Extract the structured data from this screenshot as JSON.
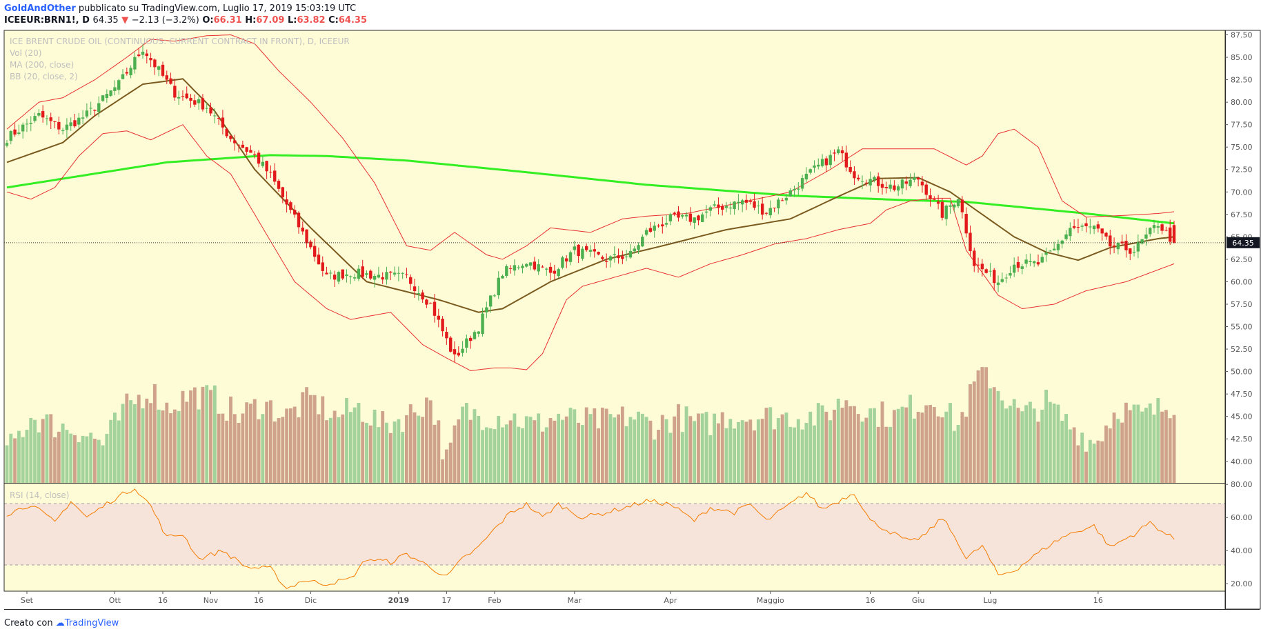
{
  "header": {
    "author": "GoldAndOther",
    "published": "pubblicato su TradingView.com, Luglio 17, 2019 15:03:19 UTC",
    "symbol": "ICEEUR:BRN1!, D",
    "last": "64.35",
    "change_arrow": "▼",
    "change": "−2.13 (−3.2%)",
    "o_label": "O:",
    "o": "66.31",
    "h_label": "H:",
    "h": "67.09",
    "l_label": "L:",
    "l": "63.82",
    "c_label": "C:",
    "c": "64.35"
  },
  "legend": {
    "title": "ICE BRENT CRUDE OIL (CONTINUOUS: CURRENT CONTRACT IN FRONT), D, ICEEUR",
    "vol": "Vol (20)",
    "ma": "MA (200, close)",
    "bb": "BB (20, close, 2)",
    "rsi": "RSI (14, close)"
  },
  "price_badge": "64.35",
  "footer": {
    "made_with": "Creato con",
    "brand": "TradingView"
  },
  "colors": {
    "bg": "#fefcd6",
    "up": "#4caf50",
    "down": "#e31a1c",
    "ma200": "#33ee22",
    "bb_mid": "#7a5a1e",
    "bb_band": "#e83030",
    "rsi": "#f57c00",
    "rsi_band": "#f6e4da",
    "vol_up": "#a3d29a",
    "vol_down": "#cfa28c"
  },
  "chart_data": {
    "type": "candlestick",
    "series_names": [
      "Vol (20)",
      "MA (200, close)",
      "BB (20, close, 2)",
      "RSI (14, close)"
    ],
    "price_axis_ticks": [
      "87.50",
      "85.00",
      "82.50",
      "80.00",
      "77.50",
      "75.00",
      "72.50",
      "70.00",
      "67.50",
      "65.00",
      "62.50",
      "60.00",
      "57.50",
      "55.00",
      "52.50",
      "50.00",
      "47.50",
      "45.00",
      "42.50",
      "40.00"
    ],
    "price_range": [
      37.6,
      88.0
    ],
    "rsi_axis_ticks": [
      "80.00",
      "60.00",
      "40.00",
      "20.00"
    ],
    "rsi_range": [
      15.5,
      80.5
    ],
    "rsi_bands": [
      70,
      30
    ],
    "x_labels": [
      "Set",
      "Ott",
      "16",
      "Nov",
      "16",
      "Dic",
      "2019",
      "17",
      "Feb",
      "Mar",
      "Apr",
      "Maggio",
      "16",
      "Giu",
      "Lug",
      "16"
    ],
    "last_close": 64.35,
    "anchors": {
      "close": [
        [
          0,
          76
        ],
        [
          8,
          78.5
        ],
        [
          14,
          77
        ],
        [
          20,
          78.6
        ],
        [
          28,
          82
        ],
        [
          34,
          86
        ],
        [
          38,
          83.5
        ],
        [
          42,
          81
        ],
        [
          50,
          79.5
        ],
        [
          56,
          76
        ],
        [
          62,
          74
        ],
        [
          66,
          71.8
        ],
        [
          72,
          67
        ],
        [
          80,
          60.5
        ],
        [
          86,
          61
        ],
        [
          92,
          60.7
        ],
        [
          100,
          60.5
        ],
        [
          106,
          57.5
        ],
        [
          112,
          51.5
        ],
        [
          118,
          55
        ],
        [
          124,
          61
        ],
        [
          130,
          62.3
        ],
        [
          136,
          61
        ],
        [
          142,
          63.5
        ],
        [
          150,
          62.5
        ],
        [
          156,
          63
        ],
        [
          160,
          65.5
        ],
        [
          166,
          67
        ],
        [
          172,
          67
        ],
        [
          176,
          68
        ],
        [
          184,
          69
        ],
        [
          190,
          67.8
        ],
        [
          196,
          70
        ],
        [
          202,
          72.5
        ],
        [
          208,
          74.5
        ],
        [
          212,
          72
        ],
        [
          218,
          71
        ],
        [
          222,
          70.5
        ],
        [
          228,
          71.5
        ],
        [
          234,
          67.5
        ],
        [
          238,
          69.5
        ],
        [
          242,
          62
        ],
        [
          248,
          60
        ],
        [
          252,
          62
        ],
        [
          258,
          62
        ],
        [
          262,
          63.5
        ],
        [
          266,
          66
        ],
        [
          272,
          66
        ],
        [
          276,
          64
        ],
        [
          282,
          63.5
        ],
        [
          288,
          66.5
        ],
        [
          292,
          64.35
        ]
      ],
      "vol": [
        [
          0,
          41
        ],
        [
          6,
          45
        ],
        [
          12,
          44
        ],
        [
          18,
          43.5
        ],
        [
          24,
          42
        ],
        [
          30,
          46
        ],
        [
          36,
          48
        ],
        [
          40,
          46
        ],
        [
          46,
          47.5
        ],
        [
          52,
          47
        ],
        [
          58,
          45
        ],
        [
          64,
          46.5
        ],
        [
          70,
          45
        ],
        [
          76,
          47
        ],
        [
          82,
          45
        ],
        [
          88,
          46
        ],
        [
          94,
          44
        ],
        [
          100,
          45
        ],
        [
          106,
          47
        ],
        [
          110,
          40
        ],
        [
          114,
          45.5
        ],
        [
          120,
          45
        ],
        [
          126,
          45
        ],
        [
          132,
          44
        ],
        [
          138,
          45
        ],
        [
          144,
          44.5
        ],
        [
          150,
          44.5
        ],
        [
          156,
          45
        ],
        [
          162,
          44
        ],
        [
          168,
          45
        ],
        [
          174,
          44
        ],
        [
          180,
          45
        ],
        [
          186,
          45
        ],
        [
          192,
          45
        ],
        [
          198,
          45
        ],
        [
          204,
          45
        ],
        [
          210,
          47
        ],
        [
          216,
          45.5
        ],
        [
          222,
          45
        ],
        [
          226,
          46
        ],
        [
          232,
          47
        ],
        [
          238,
          44
        ],
        [
          244,
          50.5
        ],
        [
          248,
          48
        ],
        [
          254,
          45
        ],
        [
          260,
          46.5
        ],
        [
          266,
          44
        ],
        [
          272,
          42
        ],
        [
          278,
          46
        ],
        [
          284,
          45
        ],
        [
          292,
          46.5
        ]
      ],
      "rsi": [
        [
          0,
          62
        ],
        [
          6,
          68
        ],
        [
          12,
          57
        ],
        [
          16,
          70
        ],
        [
          20,
          60
        ],
        [
          26,
          70
        ],
        [
          32,
          78
        ],
        [
          36,
          67
        ],
        [
          40,
          48
        ],
        [
          44,
          50
        ],
        [
          48,
          35
        ],
        [
          54,
          40
        ],
        [
          60,
          30
        ],
        [
          66,
          29
        ],
        [
          70,
          17
        ],
        [
          74,
          22
        ],
        [
          80,
          20
        ],
        [
          86,
          23
        ],
        [
          90,
          35
        ],
        [
          96,
          33
        ],
        [
          100,
          38
        ],
        [
          106,
          30
        ],
        [
          110,
          24
        ],
        [
          114,
          35
        ],
        [
          118,
          42
        ],
        [
          122,
          53
        ],
        [
          126,
          63
        ],
        [
          130,
          68
        ],
        [
          134,
          60
        ],
        [
          138,
          68
        ],
        [
          144,
          60
        ],
        [
          150,
          63
        ],
        [
          156,
          67
        ],
        [
          160,
          70
        ],
        [
          166,
          68
        ],
        [
          172,
          58
        ],
        [
          176,
          66
        ],
        [
          182,
          63
        ],
        [
          186,
          68
        ],
        [
          190,
          58
        ],
        [
          196,
          68
        ],
        [
          200,
          75
        ],
        [
          204,
          65
        ],
        [
          208,
          70
        ],
        [
          212,
          75
        ],
        [
          216,
          58
        ],
        [
          222,
          50
        ],
        [
          226,
          45
        ],
        [
          230,
          50
        ],
        [
          234,
          60
        ],
        [
          238,
          45
        ],
        [
          240,
          35
        ],
        [
          244,
          43
        ],
        [
          248,
          25
        ],
        [
          252,
          28
        ],
        [
          256,
          35
        ],
        [
          260,
          42
        ],
        [
          264,
          48
        ],
        [
          268,
          52
        ],
        [
          272,
          55
        ],
        [
          276,
          42
        ],
        [
          282,
          50
        ],
        [
          286,
          57
        ],
        [
          290,
          50
        ],
        [
          292,
          47
        ]
      ],
      "ma200": [
        [
          0,
          70.5
        ],
        [
          40,
          73.3
        ],
        [
          66,
          74.1
        ],
        [
          80,
          74
        ],
        [
          100,
          73.5
        ],
        [
          130,
          72.2
        ],
        [
          160,
          70.8
        ],
        [
          196,
          69.6
        ],
        [
          224,
          69.1
        ],
        [
          240,
          68.9
        ],
        [
          270,
          67.6
        ],
        [
          292,
          66.5
        ]
      ],
      "bb_mid": [
        [
          0,
          73.3
        ],
        [
          14,
          75.5
        ],
        [
          22,
          78.5
        ],
        [
          34,
          82
        ],
        [
          44,
          82.6
        ],
        [
          52,
          79
        ],
        [
          62,
          72.5
        ],
        [
          76,
          66
        ],
        [
          90,
          60
        ],
        [
          108,
          58
        ],
        [
          118,
          56.6
        ],
        [
          124,
          57
        ],
        [
          136,
          60
        ],
        [
          150,
          62.5
        ],
        [
          164,
          64
        ],
        [
          180,
          65.8
        ],
        [
          196,
          67
        ],
        [
          208,
          69.5
        ],
        [
          218,
          71.5
        ],
        [
          228,
          71.6
        ],
        [
          236,
          70
        ],
        [
          244,
          67.5
        ],
        [
          252,
          65
        ],
        [
          260,
          63.3
        ],
        [
          268,
          62.4
        ],
        [
          276,
          63.8
        ],
        [
          288,
          64.8
        ],
        [
          292,
          65
        ]
      ],
      "bb_upper": [
        [
          0,
          77
        ],
        [
          8,
          80
        ],
        [
          14,
          80.5
        ],
        [
          22,
          82.5
        ],
        [
          30,
          85
        ],
        [
          36,
          87
        ],
        [
          42,
          86.8
        ],
        [
          50,
          87.4
        ],
        [
          56,
          87.5
        ],
        [
          62,
          86.5
        ],
        [
          68,
          83.5
        ],
        [
          76,
          80
        ],
        [
          84,
          76
        ],
        [
          92,
          71
        ],
        [
          100,
          64
        ],
        [
          106,
          63.5
        ],
        [
          112,
          65.5
        ],
        [
          120,
          63
        ],
        [
          124,
          62.5
        ],
        [
          130,
          64
        ],
        [
          136,
          66
        ],
        [
          146,
          65.5
        ],
        [
          154,
          67
        ],
        [
          160,
          67.3
        ],
        [
          170,
          67.6
        ],
        [
          180,
          68.5
        ],
        [
          196,
          70
        ],
        [
          206,
          72.5
        ],
        [
          214,
          74.8
        ],
        [
          224,
          74.8
        ],
        [
          232,
          74.8
        ],
        [
          240,
          73
        ],
        [
          244,
          74
        ],
        [
          248,
          76.5
        ],
        [
          252,
          77
        ],
        [
          258,
          75
        ],
        [
          264,
          69
        ],
        [
          270,
          67.2
        ],
        [
          280,
          67.4
        ],
        [
          288,
          67.6
        ],
        [
          292,
          67.8
        ]
      ],
      "bb_lower": [
        [
          0,
          70
        ],
        [
          6,
          69.2
        ],
        [
          12,
          70.5
        ],
        [
          18,
          74
        ],
        [
          24,
          76.5
        ],
        [
          30,
          76.8
        ],
        [
          36,
          75.8
        ],
        [
          44,
          77.5
        ],
        [
          50,
          74
        ],
        [
          56,
          72
        ],
        [
          64,
          66
        ],
        [
          72,
          60
        ],
        [
          80,
          57
        ],
        [
          86,
          55.8
        ],
        [
          96,
          56.6
        ],
        [
          104,
          53
        ],
        [
          110,
          51.5
        ],
        [
          116,
          50.1
        ],
        [
          122,
          50.4
        ],
        [
          126,
          50.4
        ],
        [
          130,
          50.2
        ],
        [
          134,
          52
        ],
        [
          140,
          58
        ],
        [
          144,
          59.5
        ],
        [
          152,
          60.5
        ],
        [
          160,
          61.5
        ],
        [
          168,
          60.5
        ],
        [
          176,
          62
        ],
        [
          184,
          63
        ],
        [
          192,
          64.2
        ],
        [
          200,
          64.8
        ],
        [
          208,
          65.8
        ],
        [
          216,
          66.5
        ],
        [
          220,
          68
        ],
        [
          226,
          69
        ],
        [
          232,
          69.3
        ],
        [
          236,
          69.3
        ],
        [
          240,
          63.5
        ],
        [
          244,
          61
        ],
        [
          248,
          58.5
        ],
        [
          254,
          57
        ],
        [
          262,
          57.5
        ],
        [
          270,
          59
        ],
        [
          280,
          60
        ],
        [
          286,
          61
        ],
        [
          292,
          62
        ]
      ]
    }
  }
}
